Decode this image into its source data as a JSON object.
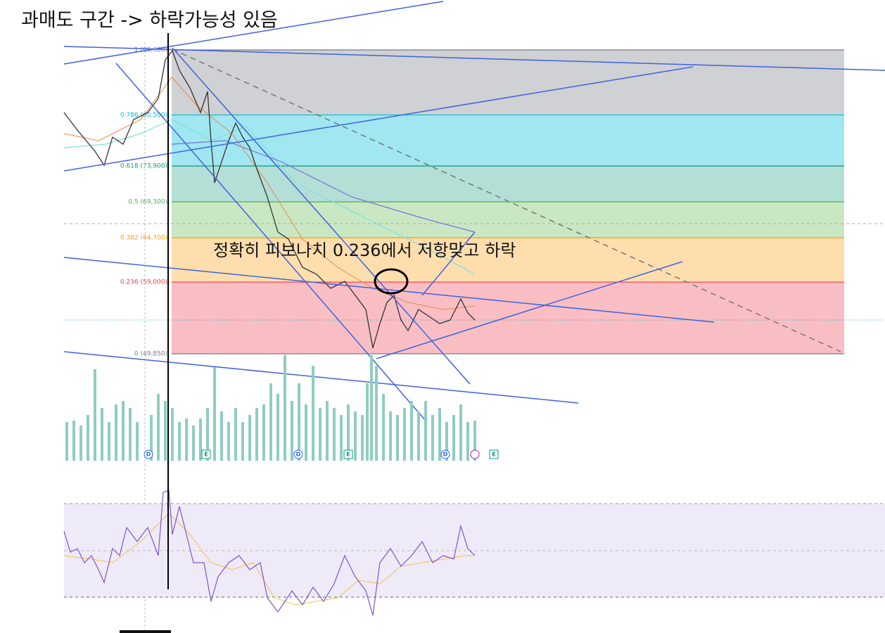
{
  "annotations": {
    "top": "과매도 구간 -> 하락가능성 있음",
    "middle": "정확히 피보나치 0.236에서 저항맞고 하락"
  },
  "fib_levels": [
    {
      "value": 1,
      "label": "1 (85,600)",
      "color": "#787b86"
    },
    {
      "value": 0.786,
      "label": "0.786 (80,500)",
      "color": "#00bcd4"
    },
    {
      "value": 0.618,
      "label": "0.618 (73,900)",
      "color": "#089981"
    },
    {
      "value": 0.5,
      "label": "0.5 (69,300)",
      "color": "#4caf50"
    },
    {
      "value": 0.382,
      "label": "0.382 (64,700)",
      "color": "#ff9800"
    },
    {
      "value": 0.236,
      "label": "0.236 (59,000)",
      "color": "#f23645"
    },
    {
      "value": 0,
      "label": "0 (49,850)",
      "color": "#787b86"
    }
  ],
  "fib_bands": [
    "#c8c9cd",
    "#8fe3ee",
    "#a6d9cf",
    "#bfe3b8",
    "#ffd8a0",
    "#f8b3ba"
  ],
  "events": [
    "D",
    "E",
    "D",
    "E",
    "D",
    "E"
  ]
}
